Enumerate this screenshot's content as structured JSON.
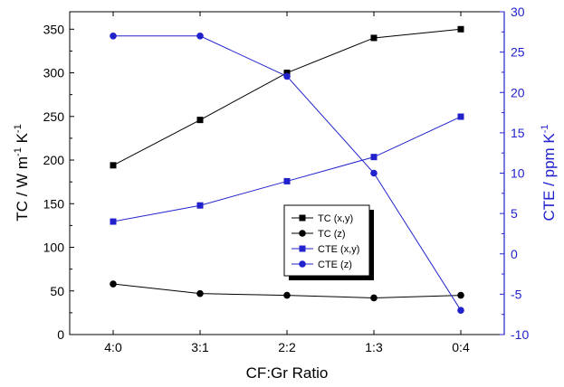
{
  "chart_data": {
    "type": "line",
    "categories": [
      "4:0",
      "3:1",
      "2:2",
      "1:3",
      "0:4"
    ],
    "xlabel": "CF:Gr Ratio",
    "left_axis": {
      "label_main": "TC  /  W m",
      "label_sup1": "-1",
      "label_mid": " K",
      "label_sup2": "-1",
      "ylim": [
        0,
        370
      ],
      "ticks": [
        "0",
        "50",
        "100",
        "150",
        "200",
        "250",
        "300",
        "350"
      ],
      "color": "#000000"
    },
    "right_axis": {
      "label_main": "CTE  /  ppm K",
      "label_sup": "-1",
      "ylim": [
        -10,
        30
      ],
      "ticks": [
        "-10",
        "-5",
        "0",
        "5",
        "10",
        "15",
        "20",
        "25",
        "30"
      ],
      "color": "#2222cc"
    },
    "series": [
      {
        "name": "TC (x,y)",
        "axis": "left",
        "marker": "square",
        "color": "#000000",
        "values": [
          194,
          246,
          300,
          340,
          350
        ]
      },
      {
        "name": "TC (z)",
        "axis": "left",
        "marker": "circle",
        "color": "#000000",
        "values": [
          58,
          47,
          45,
          42,
          45
        ]
      },
      {
        "name": "CTE (x,y)",
        "axis": "right",
        "marker": "square",
        "color": "#2222cc",
        "values": [
          4,
          6,
          9,
          12,
          17
        ]
      },
      {
        "name": "CTE (z)",
        "axis": "right",
        "marker": "circle",
        "color": "#2222cc",
        "values": [
          27,
          27,
          22,
          10,
          -7
        ]
      }
    ],
    "legend_position": "center-right inside plot",
    "grid": false
  }
}
